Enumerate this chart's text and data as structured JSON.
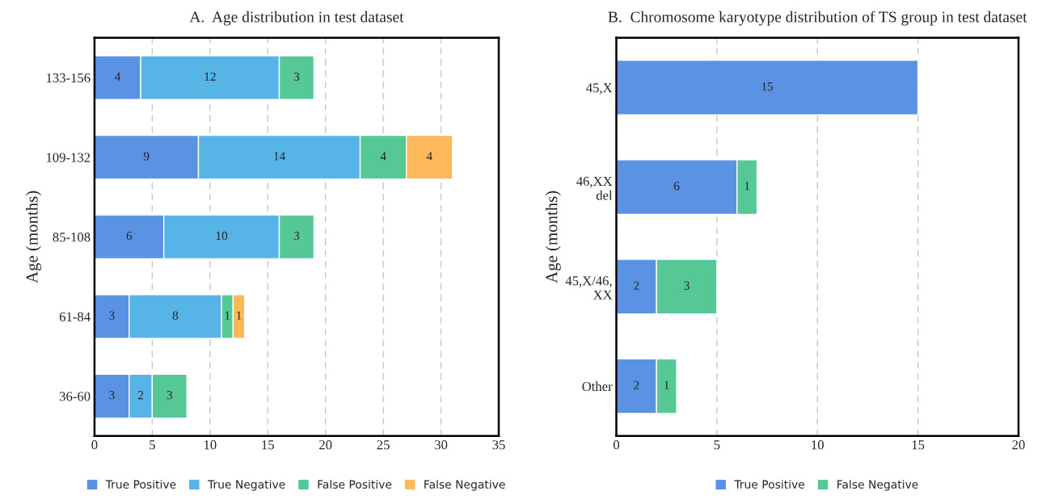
{
  "chart_data": [
    {
      "type": "bar",
      "orientation": "horizontal",
      "stacked": true,
      "title": "A.  Age distribution in test dataset",
      "ylabel": "Age (months)",
      "categories": [
        "133-156",
        "109-132",
        "85-108",
        "61-84",
        "36-60"
      ],
      "series": [
        {
          "name": "True Positive",
          "color": "#5b93e4",
          "values": [
            4,
            9,
            6,
            3,
            3
          ]
        },
        {
          "name": "True Negative",
          "color": "#56b4e6",
          "values": [
            12,
            14,
            10,
            8,
            2
          ]
        },
        {
          "name": "False Positive",
          "color": "#55c896",
          "values": [
            3,
            4,
            3,
            1,
            3
          ]
        },
        {
          "name": "False Negative",
          "color": "#fcb95b",
          "values": [
            null,
            4,
            null,
            1,
            null
          ]
        }
      ],
      "xlim": [
        0,
        35
      ],
      "xticks": [
        0,
        5,
        10,
        15,
        20,
        25,
        30,
        35
      ],
      "grid": "x",
      "legend": "bottom",
      "data_labels": true
    },
    {
      "type": "bar",
      "orientation": "horizontal",
      "stacked": true,
      "title": "B.  Chromosome karyotype distribution of TS group in test dataset",
      "ylabel": "Age (months)",
      "categories": [
        "45,X",
        "46,XX\ndel",
        "45,X/46,\nXX",
        "Other"
      ],
      "series": [
        {
          "name": "True Positive",
          "color": "#5b93e4",
          "values": [
            15,
            6,
            2,
            2
          ]
        },
        {
          "name": "False Negative",
          "color": "#55c896",
          "values": [
            null,
            1,
            3,
            1
          ]
        }
      ],
      "xlim": [
        0,
        20
      ],
      "xticks": [
        0,
        5,
        10,
        15,
        20
      ],
      "grid": "x",
      "legend": "bottom",
      "data_labels": true
    }
  ]
}
